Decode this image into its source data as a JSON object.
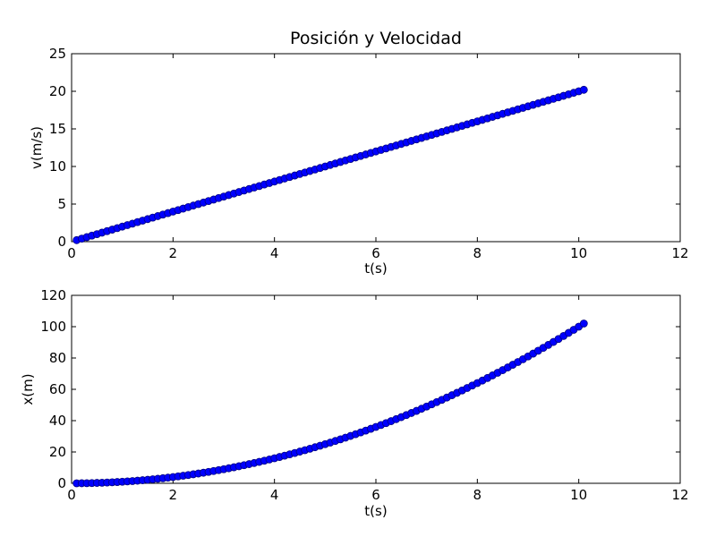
{
  "title": "Posición y Velocidad",
  "colors": {
    "marker_fill": "#0000ff",
    "marker_edge": "#000080",
    "axes": "#000000",
    "background": "#ffffff"
  },
  "chart_data": [
    {
      "type": "scatter",
      "title": "Posición y Velocidad",
      "xlabel": "t(s)",
      "ylabel": "v(m/s)",
      "xlim": [
        0,
        12
      ],
      "ylim": [
        0,
        25
      ],
      "xticks": [
        0,
        2,
        4,
        6,
        8,
        10,
        12
      ],
      "yticks": [
        0,
        5,
        10,
        15,
        20,
        25
      ],
      "grid": false,
      "series": [
        {
          "x": [
            0.1,
            0.2,
            0.3,
            0.4,
            0.5,
            0.6,
            0.7,
            0.8,
            0.9,
            1.0,
            1.1,
            1.2,
            1.3,
            1.4,
            1.5,
            1.6,
            1.7,
            1.8,
            1.9,
            2.0,
            2.1,
            2.2,
            2.3,
            2.4,
            2.5,
            2.6,
            2.7,
            2.8,
            2.9,
            3.0,
            3.1,
            3.2,
            3.3,
            3.4,
            3.5,
            3.6,
            3.7,
            3.8,
            3.9,
            4.0,
            4.1,
            4.2,
            4.3,
            4.4,
            4.5,
            4.6,
            4.7,
            4.8,
            4.9,
            5.0,
            5.1,
            5.2,
            5.3,
            5.4,
            5.5,
            5.6,
            5.7,
            5.8,
            5.9,
            6.0,
            6.1,
            6.2,
            6.3,
            6.4,
            6.5,
            6.6,
            6.7,
            6.8,
            6.9,
            7.0,
            7.1,
            7.2,
            7.3,
            7.4,
            7.5,
            7.6,
            7.7,
            7.8,
            7.9,
            8.0,
            8.1,
            8.2,
            8.3,
            8.4,
            8.5,
            8.6,
            8.7,
            8.8,
            8.9,
            9.0,
            9.1,
            9.2,
            9.3,
            9.4,
            9.5,
            9.6,
            9.7,
            9.8,
            9.9,
            10.0,
            10.1
          ],
          "y": [
            0.2,
            0.4,
            0.6,
            0.8,
            1.0,
            1.2,
            1.4,
            1.6,
            1.8,
            2.0,
            2.2,
            2.4,
            2.6,
            2.8,
            3.0,
            3.2,
            3.4,
            3.6,
            3.8,
            4.0,
            4.2,
            4.4,
            4.6,
            4.8,
            5.0,
            5.2,
            5.4,
            5.6,
            5.8,
            6.0,
            6.2,
            6.4,
            6.6,
            6.8,
            7.0,
            7.2,
            7.4,
            7.6,
            7.8,
            8.0,
            8.2,
            8.4,
            8.6,
            8.8,
            9.0,
            9.2,
            9.4,
            9.6,
            9.8,
            10.0,
            10.2,
            10.4,
            10.6,
            10.8,
            11.0,
            11.2,
            11.4,
            11.6,
            11.8,
            12.0,
            12.2,
            12.4,
            12.6,
            12.8,
            13.0,
            13.2,
            13.4,
            13.6,
            13.8,
            14.0,
            14.2,
            14.4,
            14.6,
            14.8,
            15.0,
            15.2,
            15.4,
            15.6,
            15.8,
            16.0,
            16.2,
            16.4,
            16.6,
            16.8,
            17.0,
            17.2,
            17.4,
            17.6,
            17.8,
            18.0,
            18.2,
            18.4,
            18.6,
            18.8,
            19.0,
            19.2,
            19.4,
            19.6,
            19.8,
            20.0,
            20.2
          ]
        }
      ]
    },
    {
      "type": "scatter",
      "title": "",
      "xlabel": "t(s)",
      "ylabel": "x(m)",
      "xlim": [
        0,
        12
      ],
      "ylim": [
        0,
        120
      ],
      "xticks": [
        0,
        2,
        4,
        6,
        8,
        10,
        12
      ],
      "yticks": [
        0,
        20,
        40,
        60,
        80,
        100,
        120
      ],
      "grid": false,
      "series": [
        {
          "x": [
            0.1,
            0.2,
            0.3,
            0.4,
            0.5,
            0.6,
            0.7,
            0.8,
            0.9,
            1.0,
            1.1,
            1.2,
            1.3,
            1.4,
            1.5,
            1.6,
            1.7,
            1.8,
            1.9,
            2.0,
            2.1,
            2.2,
            2.3,
            2.4,
            2.5,
            2.6,
            2.7,
            2.8,
            2.9,
            3.0,
            3.1,
            3.2,
            3.3,
            3.4,
            3.5,
            3.6,
            3.7,
            3.8,
            3.9,
            4.0,
            4.1,
            4.2,
            4.3,
            4.4,
            4.5,
            4.6,
            4.7,
            4.8,
            4.9,
            5.0,
            5.1,
            5.2,
            5.3,
            5.4,
            5.5,
            5.6,
            5.7,
            5.8,
            5.9,
            6.0,
            6.1,
            6.2,
            6.3,
            6.4,
            6.5,
            6.6,
            6.7,
            6.8,
            6.9,
            7.0,
            7.1,
            7.2,
            7.3,
            7.4,
            7.5,
            7.6,
            7.7,
            7.8,
            7.9,
            8.0,
            8.1,
            8.2,
            8.3,
            8.4,
            8.5,
            8.6,
            8.7,
            8.8,
            8.9,
            9.0,
            9.1,
            9.2,
            9.3,
            9.4,
            9.5,
            9.6,
            9.7,
            9.8,
            9.9,
            10.0,
            10.1
          ],
          "y": [
            0.01,
            0.04,
            0.09,
            0.16,
            0.25,
            0.36,
            0.49,
            0.64,
            0.81,
            1.0,
            1.21,
            1.44,
            1.69,
            1.96,
            2.25,
            2.56,
            2.89,
            3.24,
            3.61,
            4.0,
            4.41,
            4.84,
            5.29,
            5.76,
            6.25,
            6.76,
            7.29,
            7.84,
            8.41,
            9.0,
            9.61,
            10.24,
            10.89,
            11.56,
            12.25,
            12.96,
            13.69,
            14.44,
            15.21,
            16.0,
            16.81,
            17.64,
            18.49,
            19.36,
            20.25,
            21.16,
            22.09,
            23.04,
            24.01,
            25.0,
            26.01,
            27.04,
            28.09,
            29.16,
            30.25,
            31.36,
            32.49,
            33.64,
            34.81,
            36.0,
            37.21,
            38.44,
            39.69,
            40.96,
            42.25,
            43.56,
            44.89,
            46.24,
            47.61,
            49.0,
            50.41,
            51.84,
            53.29,
            54.76,
            56.25,
            57.76,
            59.29,
            60.84,
            62.41,
            64.0,
            65.61,
            67.24,
            68.89,
            70.56,
            72.25,
            73.96,
            75.69,
            77.44,
            79.21,
            81.0,
            82.81,
            84.64,
            86.49,
            88.36,
            90.25,
            92.16,
            94.09,
            96.04,
            98.01,
            100.0,
            102.01
          ]
        }
      ]
    }
  ]
}
